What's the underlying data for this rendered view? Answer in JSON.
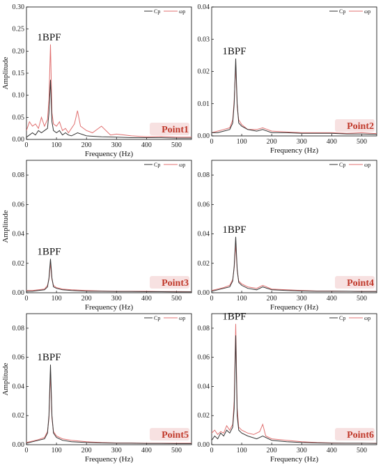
{
  "colors": {
    "cp": "#333333",
    "omega_p": "#e07070",
    "point_label": "#c0392b",
    "point_label_bg": "#f6dede"
  },
  "legend": [
    "Cp",
    "ωp"
  ],
  "chart_data": [
    {
      "type": "line",
      "panel": "Point1",
      "xlabel": "Frequency (Hz)",
      "ylabel": "Amplitude",
      "xlim": [
        0,
        550
      ],
      "ylim": [
        0,
        0.3
      ],
      "xticks": [
        "0",
        "100",
        "200",
        "300",
        "400",
        "500"
      ],
      "yticks": [
        "0.00",
        "0.05",
        "0.10",
        "0.15",
        "0.20",
        "0.25",
        "0.30"
      ],
      "annotation": {
        "text": "1BPF",
        "x": 80,
        "y": 0.215
      },
      "series": [
        {
          "name": "Cp",
          "x": [
            0,
            10,
            20,
            30,
            40,
            50,
            60,
            70,
            75,
            80,
            85,
            90,
            100,
            110,
            120,
            130,
            140,
            150,
            170,
            200,
            250,
            300,
            350,
            400,
            450,
            500,
            550
          ],
          "values": [
            0.005,
            0.01,
            0.015,
            0.01,
            0.02,
            0.015,
            0.02,
            0.025,
            0.06,
            0.135,
            0.04,
            0.02,
            0.015,
            0.02,
            0.01,
            0.015,
            0.01,
            0.008,
            0.015,
            0.008,
            0.006,
            0.005,
            0.004,
            0.004,
            0.004,
            0.003,
            0.003
          ]
        },
        {
          "name": "ωp",
          "x": [
            0,
            10,
            20,
            30,
            40,
            50,
            60,
            70,
            75,
            80,
            85,
            90,
            100,
            110,
            120,
            130,
            140,
            150,
            160,
            170,
            180,
            200,
            220,
            250,
            280,
            300,
            350,
            400,
            450,
            500,
            550
          ],
          "values": [
            0.02,
            0.04,
            0.03,
            0.035,
            0.025,
            0.05,
            0.03,
            0.045,
            0.09,
            0.215,
            0.06,
            0.035,
            0.03,
            0.04,
            0.02,
            0.025,
            0.015,
            0.025,
            0.035,
            0.065,
            0.03,
            0.02,
            0.015,
            0.03,
            0.01,
            0.012,
            0.008,
            0.006,
            0.007,
            0.005,
            0.005
          ]
        }
      ]
    },
    {
      "type": "line",
      "panel": "Point2",
      "xlabel": "Frequency (Hz)",
      "ylabel": "",
      "xlim": [
        0,
        550
      ],
      "ylim": [
        0,
        0.04
      ],
      "xticks": [
        "0",
        "100",
        "200",
        "300",
        "400",
        "500"
      ],
      "yticks": [
        "0.00",
        "0.01",
        "0.02",
        "0.03",
        "0.04"
      ],
      "annotation": {
        "text": "1BPF",
        "x": 80,
        "y": 0.024
      },
      "series": [
        {
          "name": "Cp",
          "x": [
            0,
            20,
            40,
            60,
            70,
            75,
            80,
            85,
            90,
            100,
            120,
            150,
            170,
            200,
            250,
            300,
            350,
            400,
            450,
            500,
            550
          ],
          "values": [
            0.001,
            0.001,
            0.0015,
            0.002,
            0.004,
            0.01,
            0.024,
            0.01,
            0.004,
            0.003,
            0.002,
            0.0015,
            0.002,
            0.001,
            0.001,
            0.0008,
            0.0008,
            0.0008,
            0.0006,
            0.0006,
            0.0005
          ]
        },
        {
          "name": "ωp",
          "x": [
            0,
            20,
            40,
            60,
            70,
            75,
            80,
            85,
            90,
            100,
            120,
            150,
            170,
            200,
            250,
            300,
            350,
            400,
            450,
            500,
            550
          ],
          "values": [
            0.001,
            0.0015,
            0.002,
            0.0025,
            0.005,
            0.011,
            0.022,
            0.009,
            0.005,
            0.0035,
            0.002,
            0.002,
            0.0025,
            0.0015,
            0.0012,
            0.001,
            0.001,
            0.001,
            0.0008,
            0.001,
            0.0007
          ]
        }
      ]
    },
    {
      "type": "line",
      "panel": "Point3",
      "xlabel": "Frequency (Hz)",
      "ylabel": "Amplitude",
      "xlim": [
        0,
        550
      ],
      "ylim": [
        0,
        0.09
      ],
      "xticks": [
        "0",
        "100",
        "200",
        "300",
        "400",
        "500"
      ],
      "yticks": [
        "0.00",
        "0.02",
        "0.04",
        "0.06",
        "0.08"
      ],
      "annotation": {
        "text": "1BPF",
        "x": 80,
        "y": 0.023
      },
      "series": [
        {
          "name": "Cp",
          "x": [
            0,
            20,
            40,
            60,
            70,
            75,
            80,
            85,
            90,
            100,
            120,
            150,
            200,
            250,
            300,
            350,
            400,
            450,
            500,
            550
          ],
          "values": [
            0.001,
            0.001,
            0.0015,
            0.002,
            0.004,
            0.01,
            0.023,
            0.01,
            0.004,
            0.003,
            0.002,
            0.0015,
            0.001,
            0.001,
            0.0008,
            0.0008,
            0.0007,
            0.0007,
            0.0006,
            0.0006
          ]
        },
        {
          "name": "ωp",
          "x": [
            0,
            20,
            40,
            60,
            70,
            75,
            80,
            85,
            90,
            100,
            120,
            150,
            200,
            250,
            300,
            350,
            400,
            450,
            500,
            550
          ],
          "values": [
            0.0015,
            0.0015,
            0.002,
            0.0025,
            0.005,
            0.009,
            0.02,
            0.009,
            0.005,
            0.0035,
            0.0025,
            0.002,
            0.0015,
            0.0012,
            0.001,
            0.001,
            0.001,
            0.0008,
            0.0008,
            0.0007
          ]
        }
      ]
    },
    {
      "type": "line",
      "panel": "Point4",
      "xlabel": "Frequency (Hz)",
      "ylabel": "",
      "xlim": [
        0,
        550
      ],
      "ylim": [
        0,
        0.09
      ],
      "xticks": [
        "0",
        "100",
        "200",
        "300",
        "400",
        "500"
      ],
      "yticks": [
        "0.00",
        "0.02",
        "0.04",
        "0.06",
        "0.08"
      ],
      "annotation": {
        "text": "1BPF",
        "x": 80,
        "y": 0.038
      },
      "series": [
        {
          "name": "Cp",
          "x": [
            0,
            20,
            40,
            60,
            70,
            75,
            80,
            85,
            90,
            100,
            120,
            150,
            170,
            200,
            250,
            300,
            350,
            400,
            450,
            500,
            550
          ],
          "values": [
            0.001,
            0.002,
            0.003,
            0.004,
            0.008,
            0.018,
            0.038,
            0.016,
            0.007,
            0.005,
            0.003,
            0.002,
            0.004,
            0.002,
            0.0015,
            0.0012,
            0.001,
            0.001,
            0.001,
            0.0008,
            0.0008
          ]
        },
        {
          "name": "ωp",
          "x": [
            0,
            20,
            40,
            60,
            70,
            75,
            80,
            85,
            90,
            100,
            120,
            150,
            170,
            200,
            250,
            300,
            350,
            400,
            450,
            500,
            550
          ],
          "values": [
            0.0015,
            0.0025,
            0.0035,
            0.005,
            0.009,
            0.017,
            0.033,
            0.015,
            0.008,
            0.006,
            0.004,
            0.003,
            0.005,
            0.0025,
            0.002,
            0.0015,
            0.0012,
            0.0012,
            0.001,
            0.001,
            0.001
          ]
        }
      ]
    },
    {
      "type": "line",
      "panel": "Point5",
      "xlabel": "Frequency (Hz)",
      "ylabel": "Amplitude",
      "xlim": [
        0,
        550
      ],
      "ylim": [
        0,
        0.09
      ],
      "xticks": [
        "0",
        "100",
        "200",
        "300",
        "400",
        "500"
      ],
      "yticks": [
        "0.00",
        "0.02",
        "0.04",
        "0.06",
        "0.08"
      ],
      "annotation": {
        "text": "1BPF",
        "x": 80,
        "y": 0.055
      },
      "series": [
        {
          "name": "Cp",
          "x": [
            0,
            20,
            40,
            60,
            70,
            75,
            80,
            85,
            90,
            100,
            120,
            150,
            200,
            250,
            300,
            350,
            400,
            450,
            500,
            550
          ],
          "values": [
            0.001,
            0.002,
            0.003,
            0.004,
            0.008,
            0.02,
            0.055,
            0.02,
            0.008,
            0.005,
            0.003,
            0.002,
            0.0015,
            0.0012,
            0.001,
            0.001,
            0.0008,
            0.0008,
            0.0007,
            0.0007
          ]
        },
        {
          "name": "ωp",
          "x": [
            0,
            20,
            40,
            60,
            70,
            75,
            80,
            85,
            90,
            100,
            120,
            150,
            200,
            250,
            300,
            350,
            400,
            450,
            500,
            550
          ],
          "values": [
            0.0015,
            0.0025,
            0.0035,
            0.005,
            0.009,
            0.018,
            0.05,
            0.018,
            0.009,
            0.006,
            0.004,
            0.003,
            0.002,
            0.0015,
            0.0012,
            0.0012,
            0.001,
            0.001,
            0.001,
            0.001
          ]
        }
      ]
    },
    {
      "type": "line",
      "panel": "Point6",
      "xlabel": "Frequency (Hz)",
      "ylabel": "",
      "xlim": [
        0,
        550
      ],
      "ylim": [
        0,
        0.09
      ],
      "xticks": [
        "0",
        "100",
        "200",
        "300",
        "400",
        "500"
      ],
      "yticks": [
        "0.00",
        "0.02",
        "0.04",
        "0.06",
        "0.08"
      ],
      "annotation": {
        "text": "1BPF",
        "x": 80,
        "y": 0.083
      },
      "series": [
        {
          "name": "Cp",
          "x": [
            0,
            10,
            20,
            30,
            40,
            50,
            60,
            70,
            75,
            80,
            85,
            90,
            100,
            120,
            150,
            170,
            200,
            250,
            300,
            350,
            400,
            450,
            500,
            550
          ],
          "values": [
            0.003,
            0.006,
            0.004,
            0.008,
            0.006,
            0.01,
            0.008,
            0.012,
            0.025,
            0.075,
            0.02,
            0.01,
            0.008,
            0.006,
            0.004,
            0.006,
            0.003,
            0.002,
            0.0015,
            0.0012,
            0.001,
            0.001,
            0.001,
            0.0008
          ]
        },
        {
          "name": "ωp",
          "x": [
            0,
            10,
            20,
            30,
            40,
            50,
            60,
            70,
            75,
            80,
            85,
            90,
            100,
            120,
            140,
            160,
            170,
            180,
            200,
            250,
            300,
            350,
            400,
            450,
            500,
            550
          ],
          "values": [
            0.008,
            0.01,
            0.007,
            0.009,
            0.008,
            0.013,
            0.01,
            0.014,
            0.03,
            0.083,
            0.025,
            0.012,
            0.01,
            0.008,
            0.007,
            0.009,
            0.014,
            0.006,
            0.004,
            0.003,
            0.002,
            0.0015,
            0.0012,
            0.001,
            0.001,
            0.001
          ]
        }
      ]
    }
  ]
}
